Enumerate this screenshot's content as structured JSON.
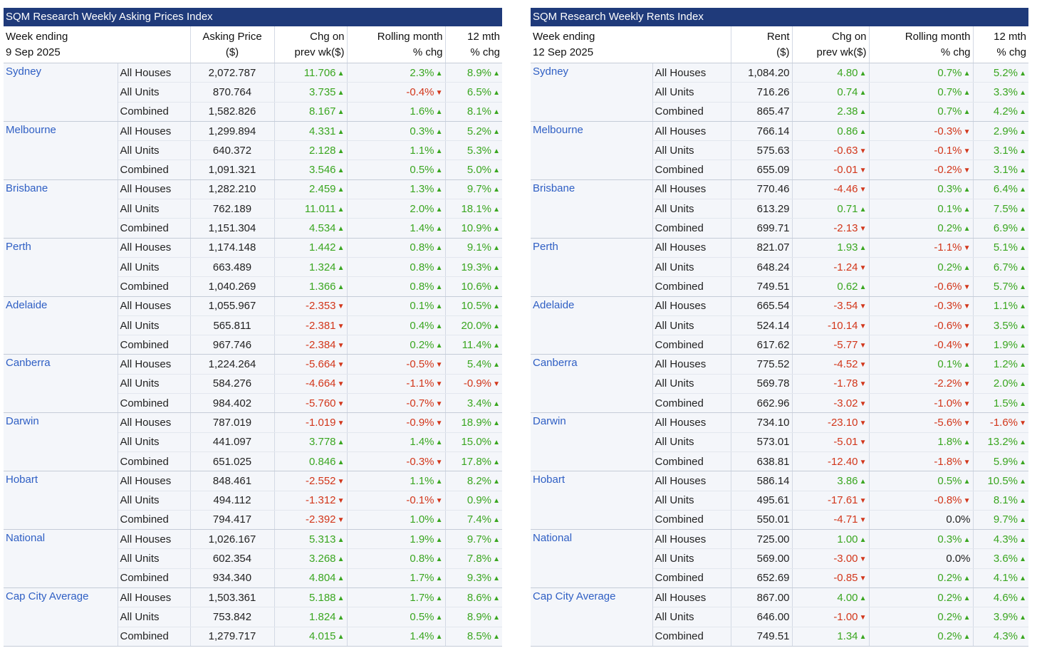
{
  "colors": {
    "header_bg": "#1f3a7a",
    "city_link": "#2f5fc4",
    "up": "#3aa620",
    "down": "#d2361a"
  },
  "icons": {
    "up": "triangle-up-icon",
    "down": "triangle-down-icon"
  },
  "prices": {
    "title": "SQM Research Weekly Asking Prices Index",
    "headers": {
      "week_line1": "Week ending",
      "week_line2": "9 Sep 2025",
      "value_line1": "Asking Price",
      "value_line2": "($)",
      "chg_line1": "Chg on",
      "chg_line2": "prev wk($)",
      "month_line1": "Rolling month",
      "month_line2": "% chg",
      "year_line1": "12 mth",
      "year_line2": "% chg"
    },
    "groups": [
      {
        "city": "Sydney",
        "rows": [
          {
            "type": "All Houses",
            "value": "2,072.787",
            "chg": "11.706",
            "month": "2.3%",
            "year": "8.9%"
          },
          {
            "type": "All Units",
            "value": "870.764",
            "chg": "3.735",
            "month": "-0.4%",
            "year": "6.5%"
          },
          {
            "type": "Combined",
            "value": "1,582.826",
            "chg": "8.167",
            "month": "1.6%",
            "year": "8.1%"
          }
        ]
      },
      {
        "city": "Melbourne",
        "rows": [
          {
            "type": "All Houses",
            "value": "1,299.894",
            "chg": "4.331",
            "month": "0.3%",
            "year": "5.2%"
          },
          {
            "type": "All Units",
            "value": "640.372",
            "chg": "2.128",
            "month": "1.1%",
            "year": "5.3%"
          },
          {
            "type": "Combined",
            "value": "1,091.321",
            "chg": "3.546",
            "month": "0.5%",
            "year": "5.0%"
          }
        ]
      },
      {
        "city": "Brisbane",
        "rows": [
          {
            "type": "All Houses",
            "value": "1,282.210",
            "chg": "2.459",
            "month": "1.3%",
            "year": "9.7%"
          },
          {
            "type": "All Units",
            "value": "762.189",
            "chg": "11.011",
            "month": "2.0%",
            "year": "18.1%"
          },
          {
            "type": "Combined",
            "value": "1,151.304",
            "chg": "4.534",
            "month": "1.4%",
            "year": "10.9%"
          }
        ]
      },
      {
        "city": "Perth",
        "rows": [
          {
            "type": "All Houses",
            "value": "1,174.148",
            "chg": "1.442",
            "month": "0.8%",
            "year": "9.1%"
          },
          {
            "type": "All Units",
            "value": "663.489",
            "chg": "1.324",
            "month": "0.8%",
            "year": "19.3%"
          },
          {
            "type": "Combined",
            "value": "1,040.269",
            "chg": "1.366",
            "month": "0.8%",
            "year": "10.6%"
          }
        ]
      },
      {
        "city": "Adelaide",
        "rows": [
          {
            "type": "All Houses",
            "value": "1,055.967",
            "chg": "-2.353",
            "month": "0.1%",
            "year": "10.5%"
          },
          {
            "type": "All Units",
            "value": "565.811",
            "chg": "-2.381",
            "month": "0.4%",
            "year": "20.0%"
          },
          {
            "type": "Combined",
            "value": "967.746",
            "chg": "-2.384",
            "month": "0.2%",
            "year": "11.4%"
          }
        ]
      },
      {
        "city": "Canberra",
        "rows": [
          {
            "type": "All Houses",
            "value": "1,224.264",
            "chg": "-5.664",
            "month": "-0.5%",
            "year": "5.4%"
          },
          {
            "type": "All Units",
            "value": "584.276",
            "chg": "-4.664",
            "month": "-1.1%",
            "year": "-0.9%"
          },
          {
            "type": "Combined",
            "value": "984.402",
            "chg": "-5.760",
            "month": "-0.7%",
            "year": "3.4%"
          }
        ]
      },
      {
        "city": "Darwin",
        "rows": [
          {
            "type": "All Houses",
            "value": "787.019",
            "chg": "-1.019",
            "month": "-0.9%",
            "year": "18.9%"
          },
          {
            "type": "All Units",
            "value": "441.097",
            "chg": "3.778",
            "month": "1.4%",
            "year": "15.0%"
          },
          {
            "type": "Combined",
            "value": "651.025",
            "chg": "0.846",
            "month": "-0.3%",
            "year": "17.8%"
          }
        ]
      },
      {
        "city": "Hobart",
        "rows": [
          {
            "type": "All Houses",
            "value": "848.461",
            "chg": "-2.552",
            "month": "1.1%",
            "year": "8.2%"
          },
          {
            "type": "All Units",
            "value": "494.112",
            "chg": "-1.312",
            "month": "-0.1%",
            "year": "0.9%"
          },
          {
            "type": "Combined",
            "value": "794.417",
            "chg": "-2.392",
            "month": "1.0%",
            "year": "7.4%"
          }
        ]
      },
      {
        "city": "National",
        "rows": [
          {
            "type": "All Houses",
            "value": "1,026.167",
            "chg": "5.313",
            "month": "1.9%",
            "year": "9.7%"
          },
          {
            "type": "All Units",
            "value": "602.354",
            "chg": "3.268",
            "month": "0.8%",
            "year": "7.8%"
          },
          {
            "type": "Combined",
            "value": "934.340",
            "chg": "4.804",
            "month": "1.7%",
            "year": "9.3%"
          }
        ]
      },
      {
        "city": "Cap City Average",
        "rows": [
          {
            "type": "All Houses",
            "value": "1,503.361",
            "chg": "5.188",
            "month": "1.7%",
            "year": "8.6%"
          },
          {
            "type": "All Units",
            "value": "753.842",
            "chg": "1.824",
            "month": "0.5%",
            "year": "8.9%"
          },
          {
            "type": "Combined",
            "value": "1,279.717",
            "chg": "4.015",
            "month": "1.4%",
            "year": "8.5%"
          }
        ]
      }
    ]
  },
  "rents": {
    "title": "SQM Research Weekly Rents Index",
    "headers": {
      "week_line1": "Week ending",
      "week_line2": "12 Sep 2025",
      "value_line1": "Rent",
      "value_line2": "($)",
      "chg_line1": "Chg on",
      "chg_line2": "prev wk($)",
      "month_line1": "Rolling month",
      "month_line2": "% chg",
      "year_line1": "12 mth",
      "year_line2": "% chg"
    },
    "groups": [
      {
        "city": "Sydney",
        "rows": [
          {
            "type": "All Houses",
            "value": "1,084.20",
            "chg": "4.80",
            "month": "0.7%",
            "year": "5.2%"
          },
          {
            "type": "All Units",
            "value": "716.26",
            "chg": "0.74",
            "month": "0.7%",
            "year": "3.3%"
          },
          {
            "type": "Combined",
            "value": "865.47",
            "chg": "2.38",
            "month": "0.7%",
            "year": "4.2%"
          }
        ]
      },
      {
        "city": "Melbourne",
        "rows": [
          {
            "type": "All Houses",
            "value": "766.14",
            "chg": "0.86",
            "month": "-0.3%",
            "year": "2.9%"
          },
          {
            "type": "All Units",
            "value": "575.63",
            "chg": "-0.63",
            "month": "-0.1%",
            "year": "3.1%"
          },
          {
            "type": "Combined",
            "value": "655.09",
            "chg": "-0.01",
            "month": "-0.2%",
            "year": "3.1%"
          }
        ]
      },
      {
        "city": "Brisbane",
        "rows": [
          {
            "type": "All Houses",
            "value": "770.46",
            "chg": "-4.46",
            "month": "0.3%",
            "year": "6.4%"
          },
          {
            "type": "All Units",
            "value": "613.29",
            "chg": "0.71",
            "month": "0.1%",
            "year": "7.5%"
          },
          {
            "type": "Combined",
            "value": "699.71",
            "chg": "-2.13",
            "month": "0.2%",
            "year": "6.9%"
          }
        ]
      },
      {
        "city": "Perth",
        "rows": [
          {
            "type": "All Houses",
            "value": "821.07",
            "chg": "1.93",
            "month": "-1.1%",
            "year": "5.1%"
          },
          {
            "type": "All Units",
            "value": "648.24",
            "chg": "-1.24",
            "month": "0.2%",
            "year": "6.7%"
          },
          {
            "type": "Combined",
            "value": "749.51",
            "chg": "0.62",
            "month": "-0.6%",
            "year": "5.7%"
          }
        ]
      },
      {
        "city": "Adelaide",
        "rows": [
          {
            "type": "All Houses",
            "value": "665.54",
            "chg": "-3.54",
            "month": "-0.3%",
            "year": "1.1%"
          },
          {
            "type": "All Units",
            "value": "524.14",
            "chg": "-10.14",
            "month": "-0.6%",
            "year": "3.5%"
          },
          {
            "type": "Combined",
            "value": "617.62",
            "chg": "-5.77",
            "month": "-0.4%",
            "year": "1.9%"
          }
        ]
      },
      {
        "city": "Canberra",
        "rows": [
          {
            "type": "All Houses",
            "value": "775.52",
            "chg": "-4.52",
            "month": "0.1%",
            "year": "1.2%"
          },
          {
            "type": "All Units",
            "value": "569.78",
            "chg": "-1.78",
            "month": "-2.2%",
            "year": "2.0%"
          },
          {
            "type": "Combined",
            "value": "662.96",
            "chg": "-3.02",
            "month": "-1.0%",
            "year": "1.5%"
          }
        ]
      },
      {
        "city": "Darwin",
        "rows": [
          {
            "type": "All Houses",
            "value": "734.10",
            "chg": "-23.10",
            "month": "-5.6%",
            "year": "-1.6%"
          },
          {
            "type": "All Units",
            "value": "573.01",
            "chg": "-5.01",
            "month": "1.8%",
            "year": "13.2%"
          },
          {
            "type": "Combined",
            "value": "638.81",
            "chg": "-12.40",
            "month": "-1.8%",
            "year": "5.9%"
          }
        ]
      },
      {
        "city": "Hobart",
        "rows": [
          {
            "type": "All Houses",
            "value": "586.14",
            "chg": "3.86",
            "month": "0.5%",
            "year": "10.5%"
          },
          {
            "type": "All Units",
            "value": "495.61",
            "chg": "-17.61",
            "month": "-0.8%",
            "year": "8.1%"
          },
          {
            "type": "Combined",
            "value": "550.01",
            "chg": "-4.71",
            "month": "0.0%",
            "year": "9.7%"
          }
        ]
      },
      {
        "city": "National",
        "rows": [
          {
            "type": "All Houses",
            "value": "725.00",
            "chg": "1.00",
            "month": "0.3%",
            "year": "4.3%"
          },
          {
            "type": "All Units",
            "value": "569.00",
            "chg": "-3.00",
            "month": "0.0%",
            "year": "3.6%"
          },
          {
            "type": "Combined",
            "value": "652.69",
            "chg": "-0.85",
            "month": "0.2%",
            "year": "4.1%"
          }
        ]
      },
      {
        "city": "Cap City Average",
        "rows": [
          {
            "type": "All Houses",
            "value": "867.00",
            "chg": "4.00",
            "month": "0.2%",
            "year": "4.6%"
          },
          {
            "type": "All Units",
            "value": "646.00",
            "chg": "-1.00",
            "month": "0.2%",
            "year": "3.9%"
          },
          {
            "type": "Combined",
            "value": "749.51",
            "chg": "1.34",
            "month": "0.2%",
            "year": "4.3%"
          }
        ]
      }
    ]
  }
}
